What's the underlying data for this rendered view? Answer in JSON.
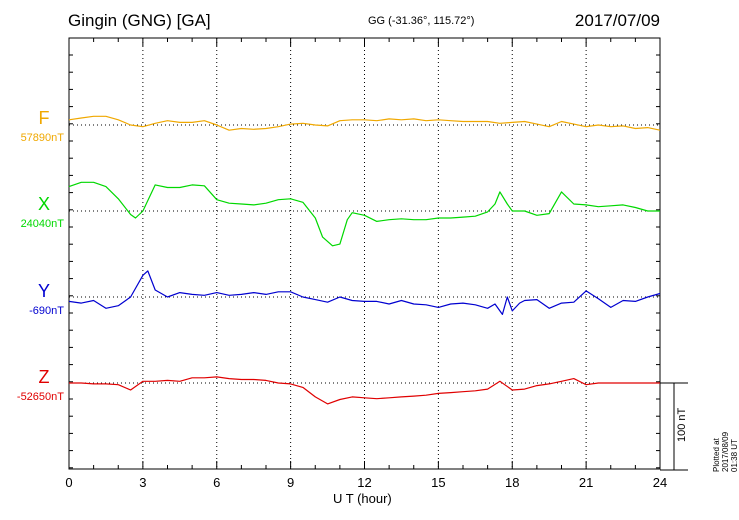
{
  "header": {
    "station": "Gingin (GNG)  [GA]",
    "coords": "GG (-31.36°, 115.72°)",
    "date": "2017/07/09"
  },
  "footer": {
    "plotted": "Plotted at 2017/08/09 01:38 UT",
    "scale": "100 nT"
  },
  "chart_data": {
    "type": "line",
    "title": "Gingin (GNG)  [GA]",
    "xlabel": "U T (hour)",
    "ylabel": "",
    "xlim": [
      0,
      24
    ],
    "xticks": [
      0,
      3,
      6,
      9,
      12,
      15,
      18,
      21,
      24
    ],
    "grid": true,
    "scale_bar_nT": 100,
    "series": [
      {
        "name": "F",
        "baseline_label": "57890nT",
        "baseline_nT": 57890,
        "color": "#f0a800",
        "x": [
          0,
          0.5,
          1,
          1.5,
          2,
          2.5,
          3,
          3.5,
          4,
          4.5,
          5,
          5.5,
          6,
          6.5,
          7,
          7.5,
          8,
          8.5,
          9,
          9.5,
          10,
          10.5,
          11,
          11.5,
          12,
          12.5,
          13,
          13.5,
          14,
          14.5,
          15,
          15.5,
          16,
          16.5,
          17,
          17.5,
          18,
          18.5,
          19,
          19.5,
          20,
          20.5,
          21,
          21.5,
          22,
          22.5,
          23,
          23.5,
          24
        ],
        "nT": [
          6,
          8,
          10,
          10,
          6,
          0,
          -2,
          2,
          5,
          3,
          3,
          5,
          0,
          -6,
          -4,
          -5,
          -4,
          -2,
          1,
          2,
          0,
          -1,
          5,
          6,
          6,
          5,
          7,
          6,
          7,
          5,
          6,
          5,
          4,
          4,
          4,
          2,
          3,
          4,
          1,
          -2,
          4,
          1,
          -2,
          0,
          -2,
          -1,
          -4,
          -3,
          -6
        ]
      },
      {
        "name": "X",
        "baseline_label": "24040nT",
        "baseline_nT": 24040,
        "color": "#00d800",
        "x": [
          0,
          0.5,
          1,
          1.5,
          2,
          2.5,
          2.7,
          3,
          3.5,
          4,
          4.5,
          5,
          5.5,
          6,
          6.5,
          7,
          7.5,
          8,
          8.5,
          9,
          9.5,
          10,
          10.3,
          10.7,
          11,
          11.3,
          11.5,
          12,
          12.5,
          13,
          13.5,
          14,
          14.5,
          15,
          15.5,
          16,
          16.5,
          17,
          17.3,
          17.5,
          17.8,
          18,
          18.5,
          19,
          19.5,
          20,
          20.5,
          21,
          21.5,
          22,
          22.5,
          23,
          23.5,
          24
        ],
        "nT": [
          28,
          33,
          33,
          28,
          14,
          -4,
          -8,
          0,
          30,
          27,
          27,
          30,
          29,
          13,
          9,
          8,
          7,
          9,
          13,
          14,
          10,
          -8,
          -30,
          -40,
          -38,
          -10,
          -2,
          -5,
          -12,
          -10,
          -9,
          -10,
          -10,
          -8,
          -8,
          -7,
          -6,
          -1,
          8,
          22,
          8,
          0,
          0,
          -5,
          -3,
          22,
          8,
          7,
          5,
          6,
          7,
          4,
          0,
          0
        ]
      },
      {
        "name": "Y",
        "baseline_label": "-690nT",
        "baseline_nT": -690,
        "color": "#0000d0",
        "x": [
          0,
          0.5,
          1,
          1.5,
          2,
          2.5,
          3,
          3.2,
          3.5,
          4,
          4.5,
          5,
          5.5,
          6,
          6.5,
          7,
          7.5,
          8,
          8.5,
          9,
          9.5,
          10,
          10.5,
          11,
          11.5,
          12,
          12.5,
          13,
          13.5,
          14,
          14.5,
          15,
          15.5,
          16,
          16.5,
          17,
          17.3,
          17.6,
          17.8,
          18,
          18.3,
          18.5,
          19,
          19.5,
          20,
          20.5,
          21,
          21.5,
          22,
          22.5,
          23,
          23.5,
          24
        ],
        "nT": [
          -5,
          -7,
          -4,
          -13,
          -10,
          0,
          25,
          30,
          8,
          0,
          5,
          3,
          2,
          5,
          2,
          3,
          5,
          3,
          6,
          6,
          0,
          -3,
          -6,
          0,
          -4,
          -5,
          -5,
          -8,
          -4,
          -8,
          -9,
          -12,
          -8,
          -7,
          -9,
          -13,
          -8,
          -20,
          0,
          -16,
          -7,
          -4,
          -3,
          -13,
          -7,
          -6,
          7,
          -2,
          -12,
          -4,
          -5,
          0,
          4
        ]
      },
      {
        "name": "Z",
        "baseline_label": "-52650nT",
        "baseline_nT": -52650,
        "color": "#e00000",
        "x": [
          0,
          0.5,
          1,
          1.5,
          2,
          2.5,
          3,
          3.5,
          4,
          4.5,
          5,
          5.5,
          6,
          6.5,
          7,
          7.5,
          8,
          8.5,
          9,
          9.5,
          10,
          10.5,
          11,
          11.5,
          12,
          12.5,
          13,
          13.5,
          14,
          14.5,
          15,
          15.5,
          16,
          16.5,
          17,
          17.5,
          18,
          18.5,
          19,
          19.5,
          20,
          20.5,
          21,
          21.5,
          22,
          22.5,
          23,
          23.5,
          24
        ],
        "nT": [
          0,
          0,
          -1,
          -1,
          -2,
          -8,
          2,
          2,
          3,
          2,
          6,
          6,
          7,
          5,
          4,
          4,
          3,
          0,
          -1,
          -5,
          -16,
          -24,
          -19,
          -16,
          -17,
          -18,
          -17,
          -16,
          -15,
          -14,
          -12,
          -11,
          -10,
          -9,
          -7,
          2,
          -8,
          -7,
          -3,
          -1,
          2,
          5,
          -2,
          0,
          0,
          0,
          0,
          0,
          0
        ]
      }
    ]
  }
}
